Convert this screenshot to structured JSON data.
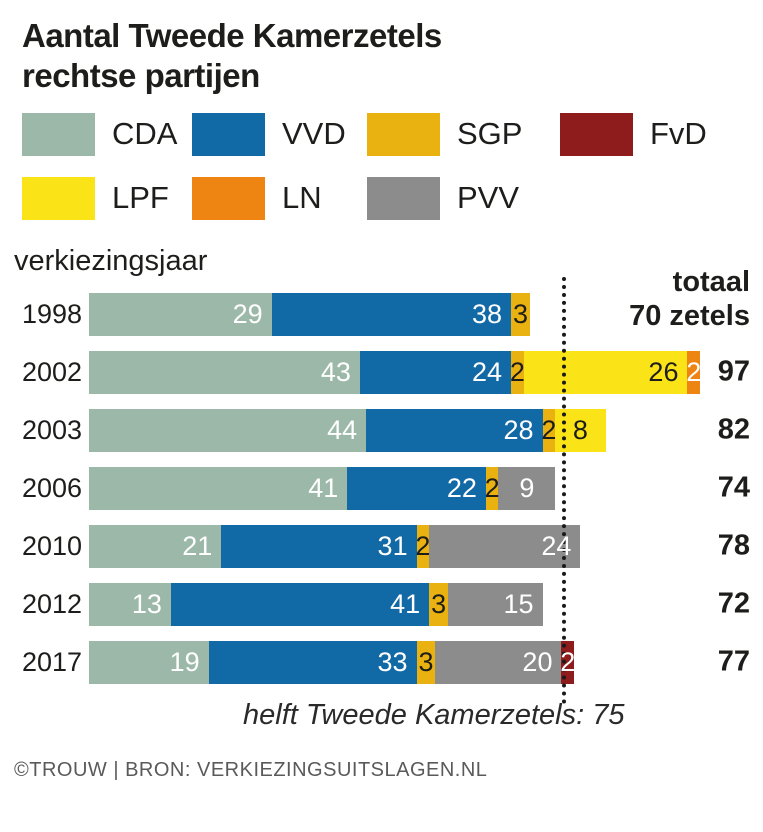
{
  "title": {
    "line1": "Aantal Tweede Kamerzetels",
    "line2": "rechtse partijen"
  },
  "legend": {
    "items": [
      {
        "id": "cda",
        "label": "CDA",
        "color": "#9cb8a9",
        "value_text_color": "#ffffff"
      },
      {
        "id": "vvd",
        "label": "VVD",
        "color": "#1169a5",
        "value_text_color": "#ffffff"
      },
      {
        "id": "sgp",
        "label": "SGP",
        "color": "#eab211",
        "value_text_color": "#1d1d1b"
      },
      {
        "id": "fvd",
        "label": "FvD",
        "color": "#8e1c1c",
        "value_text_color": "#ffffff"
      },
      {
        "id": "lpf",
        "label": "LPF",
        "color": "#fae316",
        "value_text_color": "#1d1d1b"
      },
      {
        "id": "ln",
        "label": "LN",
        "color": "#ee8411",
        "value_text_color": "#ffffff"
      },
      {
        "id": "pvv",
        "label": "PVV",
        "color": "#8c8c8c",
        "value_text_color": "#ffffff"
      }
    ]
  },
  "axis_label": "verkiezingsjaar",
  "totals_header": {
    "line1": "totaal",
    "line2": "70 zetels"
  },
  "chart_data": {
    "type": "bar",
    "orientation": "horizontal",
    "stacked": true,
    "title": "Aantal Tweede Kamerzetels rechtse partijen",
    "categories": [
      "1998",
      "2002",
      "2003",
      "2006",
      "2010",
      "2012",
      "2017"
    ],
    "series": [
      {
        "name": "CDA",
        "values": [
          29,
          43,
          44,
          41,
          21,
          13,
          19
        ]
      },
      {
        "name": "VVD",
        "values": [
          38,
          24,
          28,
          22,
          31,
          41,
          33
        ]
      },
      {
        "name": "SGP",
        "values": [
          3,
          2,
          2,
          2,
          2,
          3,
          3
        ]
      },
      {
        "name": "LPF",
        "values": [
          0,
          26,
          8,
          0,
          0,
          0,
          0
        ]
      },
      {
        "name": "LN",
        "values": [
          0,
          2,
          0,
          0,
          0,
          0,
          0
        ]
      },
      {
        "name": "PVV",
        "values": [
          0,
          0,
          0,
          9,
          24,
          15,
          20
        ]
      },
      {
        "name": "FvD",
        "values": [
          0,
          0,
          0,
          0,
          0,
          0,
          2
        ]
      }
    ],
    "totals": [
      70,
      97,
      82,
      74,
      78,
      72,
      77
    ],
    "xlim": [
      0,
      97
    ],
    "reference_line": {
      "value": 75,
      "label": "helft Tweede Kamerzetels: 75"
    },
    "grid": false,
    "legend_position": "top"
  },
  "footer": {
    "credit": "©TROUW | BRON: VERKIEZINGSUITSLAGEN.NL"
  }
}
